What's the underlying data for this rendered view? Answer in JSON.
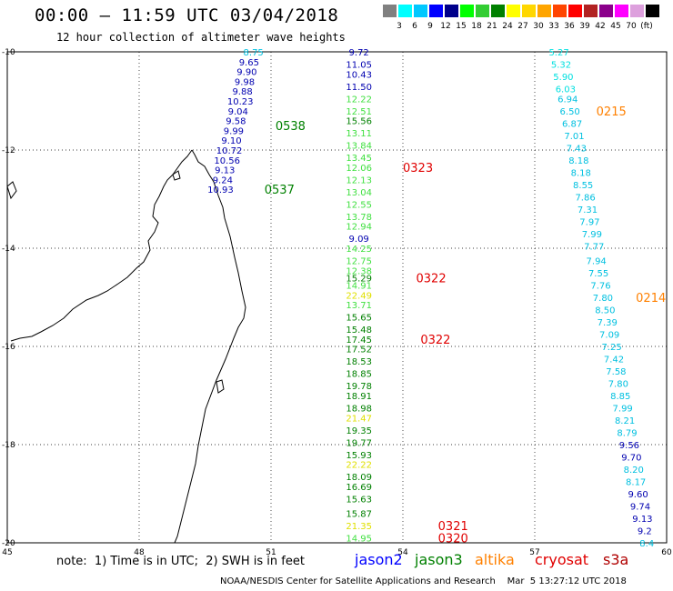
{
  "header": {
    "title": "00:00 — 11:59 UTC 03/04/2018",
    "subtitle": "12 hour collection of altimeter wave heights"
  },
  "colorbar": {
    "colors": [
      "#808080",
      "#00ffff",
      "#00c8ff",
      "#0000ff",
      "#00008b",
      "#00ff00",
      "#32cd32",
      "#008000",
      "#ffff00",
      "#ffd700",
      "#ffa500",
      "#ff4500",
      "#ff0000",
      "#b22222",
      "#8b008b",
      "#ff00ff",
      "#dda0dd",
      "#000000"
    ],
    "labels": [
      "3",
      "6",
      "9",
      "12",
      "15",
      "18",
      "21",
      "24",
      "27",
      "30",
      "33",
      "36",
      "39",
      "42",
      "45",
      "70",
      "(ft)"
    ]
  },
  "axes": {
    "x_ticks": [
      "45",
      "48",
      "51",
      "54",
      "57",
      "60"
    ],
    "y_ticks": [
      "-10",
      "-12",
      "-14",
      "-16",
      "-18",
      "-20"
    ],
    "xlim": [
      45,
      60
    ],
    "ylim": [
      -20,
      -10
    ],
    "grid": true
  },
  "tracks": [
    {
      "satellite": "jason2",
      "color": "#0000b0",
      "pass_times": [
        {
          "label": "0538",
          "color": "#008000",
          "lon": 51.1,
          "lat": -11.5
        },
        {
          "label": "0537",
          "color": "#008000",
          "lon": 50.85,
          "lat": -12.8
        }
      ],
      "points": [
        {
          "lon": 50.6,
          "lat": -10.0,
          "v": "8.75",
          "c": "#00c0e0"
        },
        {
          "lon": 50.5,
          "lat": -10.2,
          "v": "9.65",
          "c": "#0000b0"
        },
        {
          "lon": 50.45,
          "lat": -10.4,
          "v": "9.90",
          "c": "#0000b0"
        },
        {
          "lon": 50.4,
          "lat": -10.6,
          "v": "9.98",
          "c": "#0000b0"
        },
        {
          "lon": 50.35,
          "lat": -10.8,
          "v": "9.88",
          "c": "#0000b0"
        },
        {
          "lon": 50.3,
          "lat": -11.0,
          "v": "10.23",
          "c": "#0000b0"
        },
        {
          "lon": 50.25,
          "lat": -11.2,
          "v": "9.04",
          "c": "#0000b0"
        },
        {
          "lon": 50.2,
          "lat": -11.4,
          "v": "9.58",
          "c": "#0000b0"
        },
        {
          "lon": 50.15,
          "lat": -11.6,
          "v": "9.99",
          "c": "#0000b0"
        },
        {
          "lon": 50.1,
          "lat": -11.8,
          "v": "9.10",
          "c": "#0000b0"
        },
        {
          "lon": 50.05,
          "lat": -12.0,
          "v": "10.72",
          "c": "#0000b0"
        },
        {
          "lon": 50.0,
          "lat": -12.2,
          "v": "10.56",
          "c": "#0000b0"
        },
        {
          "lon": 49.95,
          "lat": -12.4,
          "v": "9.13",
          "c": "#0000b0"
        },
        {
          "lon": 49.9,
          "lat": -12.6,
          "v": "9.24",
          "c": "#0000b0"
        },
        {
          "lon": 49.85,
          "lat": -12.8,
          "v": "10.93",
          "c": "#0000b0"
        }
      ]
    },
    {
      "satellite": "jason3",
      "color": "#008000",
      "pass_times": [
        {
          "label": "0323",
          "color": "#e00000",
          "lon": 54.0,
          "lat": -12.35
        },
        {
          "label": "0322",
          "color": "#e00000",
          "lon": 54.3,
          "lat": -14.6
        },
        {
          "label": "0322",
          "color": "#e00000",
          "lon": 54.4,
          "lat": -15.85
        },
        {
          "label": "0321",
          "color": "#e00000",
          "lon": 54.8,
          "lat": -19.65
        },
        {
          "label": "0320",
          "color": "#e00000",
          "lon": 54.8,
          "lat": -19.9
        }
      ],
      "points": [
        {
          "lon": 53.0,
          "lat": -10.0,
          "v": "9.72",
          "c": "#0000b0"
        },
        {
          "lon": 53.0,
          "lat": -10.25,
          "v": "11.05",
          "c": "#0000b0"
        },
        {
          "lon": 53.0,
          "lat": -10.45,
          "v": "10.43",
          "c": "#0000b0"
        },
        {
          "lon": 53.0,
          "lat": -10.7,
          "v": "11.50",
          "c": "#0000b0"
        },
        {
          "lon": 53.0,
          "lat": -10.95,
          "v": "12.22",
          "c": "#40e040"
        },
        {
          "lon": 53.0,
          "lat": -11.2,
          "v": "12.51",
          "c": "#40e040"
        },
        {
          "lon": 53.0,
          "lat": -11.4,
          "v": "15.56",
          "c": "#008000"
        },
        {
          "lon": 53.0,
          "lat": -11.65,
          "v": "13.11",
          "c": "#40e040"
        },
        {
          "lon": 53.0,
          "lat": -11.9,
          "v": "13.84",
          "c": "#40e040"
        },
        {
          "lon": 53.0,
          "lat": -12.15,
          "v": "13.45",
          "c": "#40e040"
        },
        {
          "lon": 53.0,
          "lat": -12.35,
          "v": "12.06",
          "c": "#40e040"
        },
        {
          "lon": 53.0,
          "lat": -12.6,
          "v": "12.13",
          "c": "#40e040"
        },
        {
          "lon": 53.0,
          "lat": -12.85,
          "v": "13.04",
          "c": "#40e040"
        },
        {
          "lon": 53.0,
          "lat": -13.1,
          "v": "12.55",
          "c": "#40e040"
        },
        {
          "lon": 53.0,
          "lat": -13.35,
          "v": "13.78",
          "c": "#40e040"
        },
        {
          "lon": 53.0,
          "lat": -13.55,
          "v": "12.94",
          "c": "#40e040"
        },
        {
          "lon": 53.0,
          "lat": -13.8,
          "v": "9.09",
          "c": "#0000b0"
        },
        {
          "lon": 53.0,
          "lat": -14.0,
          "v": "14.25",
          "c": "#40e040"
        },
        {
          "lon": 53.0,
          "lat": -14.25,
          "v": "12.75",
          "c": "#40e040"
        },
        {
          "lon": 53.0,
          "lat": -14.45,
          "v": "12.38",
          "c": "#40e040"
        },
        {
          "lon": 53.0,
          "lat": -14.6,
          "v": "15.29",
          "c": "#008000"
        },
        {
          "lon": 53.0,
          "lat": -14.75,
          "v": "14.91",
          "c": "#40e040"
        },
        {
          "lon": 53.0,
          "lat": -14.95,
          "v": "22.49",
          "c": "#e0e000"
        },
        {
          "lon": 53.0,
          "lat": -15.15,
          "v": "13.71",
          "c": "#40e040"
        },
        {
          "lon": 53.0,
          "lat": -15.4,
          "v": "15.65",
          "c": "#008000"
        },
        {
          "lon": 53.0,
          "lat": -15.65,
          "v": "15.48",
          "c": "#008000"
        },
        {
          "lon": 53.0,
          "lat": -15.85,
          "v": "17.45",
          "c": "#008000"
        },
        {
          "lon": 53.0,
          "lat": -16.05,
          "v": "17.52",
          "c": "#008000"
        },
        {
          "lon": 53.0,
          "lat": -16.3,
          "v": "18.53",
          "c": "#008000"
        },
        {
          "lon": 53.0,
          "lat": -16.55,
          "v": "18.85",
          "c": "#008000"
        },
        {
          "lon": 53.0,
          "lat": -16.8,
          "v": "19.78",
          "c": "#008000"
        },
        {
          "lon": 53.0,
          "lat": -17.0,
          "v": "18.91",
          "c": "#008000"
        },
        {
          "lon": 53.0,
          "lat": -17.25,
          "v": "18.98",
          "c": "#008000"
        },
        {
          "lon": 53.0,
          "lat": -17.45,
          "v": "21.47",
          "c": "#e0e000"
        },
        {
          "lon": 53.0,
          "lat": -17.7,
          "v": "19.35",
          "c": "#008000"
        },
        {
          "lon": 53.0,
          "lat": -17.95,
          "v": "19.77",
          "c": "#008000"
        },
        {
          "lon": 53.0,
          "lat": -18.2,
          "v": "15.93",
          "c": "#008000"
        },
        {
          "lon": 53.0,
          "lat": -18.4,
          "v": "22.22",
          "c": "#e0e000"
        },
        {
          "lon": 53.0,
          "lat": -18.65,
          "v": "18.09",
          "c": "#008000"
        },
        {
          "lon": 53.0,
          "lat": -18.85,
          "v": "16.69",
          "c": "#008000"
        },
        {
          "lon": 53.0,
          "lat": -19.1,
          "v": "15.63",
          "c": "#008000"
        },
        {
          "lon": 53.0,
          "lat": -19.4,
          "v": "15.87",
          "c": "#008000"
        },
        {
          "lon": 53.0,
          "lat": -19.65,
          "v": "21.35",
          "c": "#e0e000"
        },
        {
          "lon": 53.0,
          "lat": -19.9,
          "v": "14.95",
          "c": "#40e040"
        }
      ]
    },
    {
      "satellite": "altika",
      "color": "#00c0e0",
      "pass_times": [
        {
          "label": "0215",
          "color": "#ff8000",
          "lon": 58.4,
          "lat": -11.2
        },
        {
          "label": "0214",
          "color": "#ff8000",
          "lon": 59.3,
          "lat": -15.0
        }
      ],
      "points": [
        {
          "lon": 57.55,
          "lat": -10.0,
          "v": "5.27",
          "c": "#00e0e0"
        },
        {
          "lon": 57.6,
          "lat": -10.25,
          "v": "5.32",
          "c": "#00e0e0"
        },
        {
          "lon": 57.65,
          "lat": -10.5,
          "v": "5.90",
          "c": "#00e0e0"
        },
        {
          "lon": 57.7,
          "lat": -10.75,
          "v": "6.03",
          "c": "#00e0e0"
        },
        {
          "lon": 57.75,
          "lat": -10.95,
          "v": "6.94",
          "c": "#00c0e0"
        },
        {
          "lon": 57.8,
          "lat": -11.2,
          "v": "6.50",
          "c": "#00c0e0"
        },
        {
          "lon": 57.85,
          "lat": -11.45,
          "v": "6.87",
          "c": "#00c0e0"
        },
        {
          "lon": 57.9,
          "lat": -11.7,
          "v": "7.01",
          "c": "#00c0e0"
        },
        {
          "lon": 57.95,
          "lat": -11.95,
          "v": "7.43",
          "c": "#00c0e0"
        },
        {
          "lon": 58.0,
          "lat": -12.2,
          "v": "8.18",
          "c": "#00c0e0"
        },
        {
          "lon": 58.05,
          "lat": -12.45,
          "v": "8.18",
          "c": "#00c0e0"
        },
        {
          "lon": 58.1,
          "lat": -12.7,
          "v": "8.55",
          "c": "#00c0e0"
        },
        {
          "lon": 58.15,
          "lat": -12.95,
          "v": "7.86",
          "c": "#00c0e0"
        },
        {
          "lon": 58.2,
          "lat": -13.2,
          "v": "7.31",
          "c": "#00c0e0"
        },
        {
          "lon": 58.25,
          "lat": -13.45,
          "v": "7.97",
          "c": "#00c0e0"
        },
        {
          "lon": 58.3,
          "lat": -13.7,
          "v": "7.99",
          "c": "#00c0e0"
        },
        {
          "lon": 58.35,
          "lat": -13.95,
          "v": "7.77",
          "c": "#00c0e0"
        },
        {
          "lon": 58.4,
          "lat": -14.25,
          "v": "7.94",
          "c": "#00c0e0"
        },
        {
          "lon": 58.45,
          "lat": -14.5,
          "v": "7.55",
          "c": "#00c0e0"
        },
        {
          "lon": 58.5,
          "lat": -14.75,
          "v": "7.76",
          "c": "#00c0e0"
        },
        {
          "lon": 58.55,
          "lat": -15.0,
          "v": "7.80",
          "c": "#00c0e0"
        },
        {
          "lon": 58.6,
          "lat": -15.25,
          "v": "8.50",
          "c": "#00c0e0"
        },
        {
          "lon": 58.65,
          "lat": -15.5,
          "v": "7.39",
          "c": "#00c0e0"
        },
        {
          "lon": 58.7,
          "lat": -15.75,
          "v": "7.09",
          "c": "#00c0e0"
        },
        {
          "lon": 58.75,
          "lat": -16.0,
          "v": "7.25",
          "c": "#00c0e0"
        },
        {
          "lon": 58.8,
          "lat": -16.25,
          "v": "7.42",
          "c": "#00c0e0"
        },
        {
          "lon": 58.85,
          "lat": -16.5,
          "v": "7.58",
          "c": "#00c0e0"
        },
        {
          "lon": 58.9,
          "lat": -16.75,
          "v": "7.80",
          "c": "#00c0e0"
        },
        {
          "lon": 58.95,
          "lat": -17.0,
          "v": "8.85",
          "c": "#00c0e0"
        },
        {
          "lon": 59.0,
          "lat": -17.25,
          "v": "7.99",
          "c": "#00c0e0"
        },
        {
          "lon": 59.05,
          "lat": -17.5,
          "v": "8.21",
          "c": "#00c0e0"
        },
        {
          "lon": 59.1,
          "lat": -17.75,
          "v": "8.79",
          "c": "#00c0e0"
        },
        {
          "lon": 59.15,
          "lat": -18.0,
          "v": "9.56",
          "c": "#0000b0"
        },
        {
          "lon": 59.2,
          "lat": -18.25,
          "v": "9.70",
          "c": "#0000b0"
        },
        {
          "lon": 59.25,
          "lat": -18.5,
          "v": "8.20",
          "c": "#00c0e0"
        },
        {
          "lon": 59.3,
          "lat": -18.75,
          "v": "8.17",
          "c": "#00c0e0"
        },
        {
          "lon": 59.35,
          "lat": -19.0,
          "v": "9.60",
          "c": "#0000b0"
        },
        {
          "lon": 59.4,
          "lat": -19.25,
          "v": "9.74",
          "c": "#0000b0"
        },
        {
          "lon": 59.45,
          "lat": -19.5,
          "v": "9.13",
          "c": "#0000b0"
        },
        {
          "lon": 59.5,
          "lat": -19.75,
          "v": "9.2",
          "c": "#0000b0"
        },
        {
          "lon": 59.55,
          "lat": -20.0,
          "v": "8.4",
          "c": "#00c0e0"
        }
      ]
    }
  ],
  "footer": {
    "note": "note:  1) Time is in UTC;  2) SWH is in feet",
    "satellites": [
      {
        "name": "jason2",
        "color": "#0000ff"
      },
      {
        "name": "jason3",
        "color": "#008000"
      },
      {
        "name": "altika",
        "color": "#ff8000"
      },
      {
        "name": "cryosat",
        "color": "#e00000"
      },
      {
        "name": "s3a",
        "color": "#b00000"
      }
    ],
    "credit": "NOAA/NESDIS Center for Satellite Applications and Research    Mar  5 13:27:12 UTC 2018"
  }
}
